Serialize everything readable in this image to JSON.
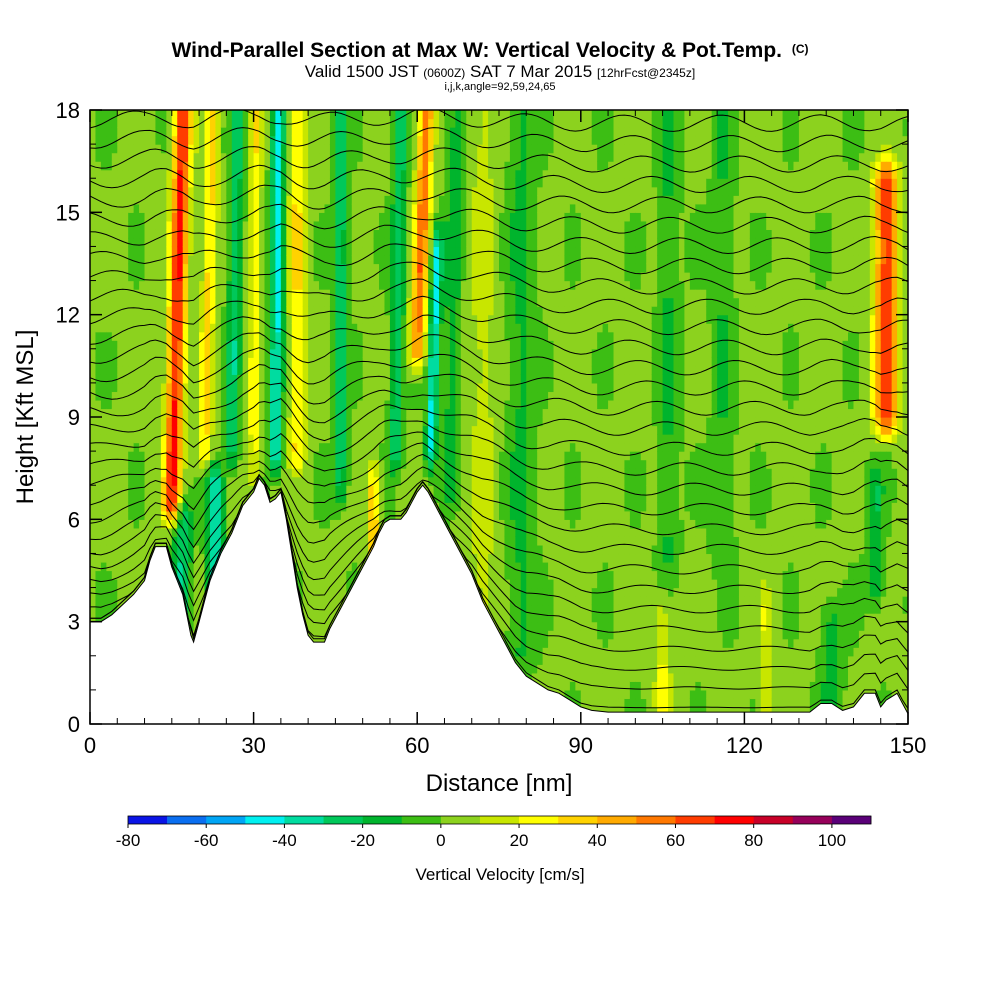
{
  "chart_data": {
    "type": "heatmap",
    "title": "Wind-Parallel Section at Max W: Vertical Velocity & Pot.Temp.",
    "title_mark": "(C)",
    "subtitle_parts": [
      "Valid 1500 JST ",
      "(0600Z)",
      " SAT 7 Mar 2015 ",
      "[12hrFcst@2345z]"
    ],
    "subtitle2": "i,j,k,angle=92,59,24,65",
    "xlabel": "Distance [nm]",
    "ylabel": "Height [Kft MSL]",
    "xlim": [
      0,
      150
    ],
    "ylim": [
      0,
      18
    ],
    "xticks": [
      0,
      30,
      60,
      90,
      120,
      150
    ],
    "yticks": [
      0,
      3,
      6,
      9,
      12,
      15,
      18
    ],
    "colorbar": {
      "label": "Vertical Velocity [cm/s]",
      "ticks": [
        -80,
        -60,
        -40,
        -20,
        0,
        20,
        40,
        60,
        80,
        100
      ],
      "bounds": [
        -80,
        -70,
        -60,
        -50,
        -40,
        -30,
        -20,
        -10,
        0,
        10,
        20,
        30,
        40,
        50,
        60,
        70,
        80,
        90,
        100
      ],
      "colors": [
        "#0a14e6",
        "#0a6ef0",
        "#00a5f5",
        "#00f0f0",
        "#00dca0",
        "#00c85a",
        "#00b42d",
        "#3cbe14",
        "#8cd21e",
        "#c8e600",
        "#ffff00",
        "#ffd200",
        "#ffaa00",
        "#ff7800",
        "#ff3c00",
        "#ff0000",
        "#c80028",
        "#96005a",
        "#5a0078"
      ]
    },
    "terrain_kft": [
      [
        0,
        3.0
      ],
      [
        2,
        3.0
      ],
      [
        4,
        3.2
      ],
      [
        6,
        3.5
      ],
      [
        8,
        3.8
      ],
      [
        10,
        4.2
      ],
      [
        11,
        4.8
      ],
      [
        12,
        5.2
      ],
      [
        14,
        5.2
      ],
      [
        15,
        4.6
      ],
      [
        16,
        4.2
      ],
      [
        17,
        3.8
      ],
      [
        18,
        3.0
      ],
      [
        18.5,
        2.6
      ],
      [
        19,
        2.4
      ],
      [
        20,
        3.0
      ],
      [
        21,
        3.6
      ],
      [
        22,
        4.2
      ],
      [
        24,
        5.0
      ],
      [
        26,
        5.6
      ],
      [
        28,
        6.4
      ],
      [
        30,
        6.8
      ],
      [
        31,
        7.2
      ],
      [
        32,
        7.0
      ],
      [
        33,
        6.5
      ],
      [
        34,
        6.6
      ],
      [
        35,
        6.8
      ],
      [
        36,
        6.0
      ],
      [
        37,
        5.0
      ],
      [
        38,
        4.0
      ],
      [
        39,
        3.2
      ],
      [
        40,
        2.6
      ],
      [
        41,
        2.4
      ],
      [
        43,
        2.4
      ],
      [
        44,
        2.8
      ],
      [
        46,
        3.4
      ],
      [
        48,
        4.0
      ],
      [
        50,
        4.6
      ],
      [
        52,
        5.2
      ],
      [
        53,
        5.6
      ],
      [
        54,
        5.9
      ],
      [
        55,
        6.0
      ],
      [
        56,
        6.0
      ],
      [
        57,
        6.0
      ],
      [
        58,
        6.2
      ],
      [
        59,
        6.5
      ],
      [
        60,
        6.8
      ],
      [
        61,
        7.0
      ],
      [
        62,
        6.8
      ],
      [
        63,
        6.5
      ],
      [
        64,
        6.2
      ],
      [
        66,
        5.6
      ],
      [
        68,
        5.0
      ],
      [
        70,
        4.4
      ],
      [
        72,
        3.6
      ],
      [
        74,
        3.0
      ],
      [
        76,
        2.4
      ],
      [
        78,
        1.8
      ],
      [
        80,
        1.4
      ],
      [
        82,
        1.2
      ],
      [
        84,
        1.0
      ],
      [
        86,
        0.9
      ],
      [
        88,
        0.7
      ],
      [
        90,
        0.5
      ],
      [
        92,
        0.4
      ],
      [
        95,
        0.35
      ],
      [
        100,
        0.35
      ],
      [
        110,
        0.35
      ],
      [
        120,
        0.35
      ],
      [
        132,
        0.35
      ],
      [
        134,
        0.6
      ],
      [
        136,
        0.6
      ],
      [
        138,
        0.4
      ],
      [
        140,
        0.5
      ],
      [
        142,
        0.9
      ],
      [
        144,
        0.9
      ],
      [
        145,
        0.5
      ],
      [
        146,
        0.7
      ],
      [
        148,
        0.9
      ],
      [
        150,
        0.3
      ]
    ],
    "isentrope_heights_kft": [
      0.2,
      0.8,
      1.4,
      2.0,
      2.6,
      3.2,
      3.8,
      4.4,
      5.0,
      5.6,
      6.2,
      6.8,
      7.4,
      8.0,
      8.6,
      9.2,
      9.8,
      10.4,
      11.0,
      11.6,
      12.2,
      12.8,
      13.4,
      14.0,
      14.6,
      15.2,
      15.8,
      16.4,
      17.0,
      17.6
    ],
    "features": [
      {
        "x": 15,
        "half_width_nm": 1.6,
        "y_bottom": 6.5,
        "y_top": 18,
        "w": 70,
        "tilt": 0.18
      },
      {
        "x": 21,
        "half_width_nm": 1.2,
        "y_bottom": 8,
        "y_top": 18,
        "w": 32,
        "tilt": 0.15
      },
      {
        "x": 23,
        "half_width_nm": 1.5,
        "y_bottom": 3,
        "y_top": 7,
        "w": -45,
        "tilt": 0
      },
      {
        "x": 17,
        "half_width_nm": 1.5,
        "y_bottom": 3.5,
        "y_top": 6,
        "w": -35,
        "tilt": 0
      },
      {
        "x": 26,
        "half_width_nm": 1.2,
        "y_bottom": 8,
        "y_top": 18,
        "w": -30,
        "tilt": 0.1
      },
      {
        "x": 34,
        "half_width_nm": 1.2,
        "y_bottom": 8,
        "y_top": 18,
        "w": -45,
        "tilt": 0.05
      },
      {
        "x": 30,
        "half_width_nm": 1.0,
        "y_bottom": 7.5,
        "y_top": 18,
        "w": 25,
        "tilt": 0.05
      },
      {
        "x": 38,
        "half_width_nm": 1.4,
        "y_bottom": 8,
        "y_top": 18,
        "w": 30,
        "tilt": 0
      },
      {
        "x": 46,
        "half_width_nm": 1.2,
        "y_bottom": 7,
        "y_top": 18,
        "w": -28,
        "tilt": 0
      },
      {
        "x": 52,
        "half_width_nm": 1.0,
        "y_bottom": 5,
        "y_top": 7,
        "w": 38,
        "tilt": 0
      },
      {
        "x": 56,
        "half_width_nm": 1.2,
        "y_bottom": 8,
        "y_top": 18,
        "w": -30,
        "tilt": 0.1
      },
      {
        "x": 60,
        "half_width_nm": 1.4,
        "y_bottom": 11,
        "y_top": 18,
        "w": 55,
        "tilt": 0.25
      },
      {
        "x": 62.5,
        "half_width_nm": 1.0,
        "y_bottom": 8,
        "y_top": 14,
        "w": -45,
        "tilt": 0.2
      },
      {
        "x": 66,
        "half_width_nm": 1.5,
        "y_bottom": 7,
        "y_top": 18,
        "w": -18,
        "tilt": 0.1
      },
      {
        "x": 72,
        "half_width_nm": 2.5,
        "y_bottom": 3,
        "y_top": 18,
        "w": 12,
        "tilt": 0
      },
      {
        "x": 79,
        "half_width_nm": 2.5,
        "y_bottom": 2,
        "y_top": 18,
        "w": -14,
        "tilt": 0
      },
      {
        "x": 106,
        "half_width_nm": 1.8,
        "y_bottom": 5,
        "y_top": 18,
        "w": -14,
        "tilt": 0
      },
      {
        "x": 116,
        "half_width_nm": 2.0,
        "y_bottom": 5,
        "y_top": 18,
        "w": -12,
        "tilt": 0
      },
      {
        "x": 105,
        "half_width_nm": 1.5,
        "y_bottom": 0.5,
        "y_top": 3,
        "w": 20,
        "tilt": 0
      },
      {
        "x": 124,
        "half_width_nm": 1.2,
        "y_bottom": 0.5,
        "y_top": 3.5,
        "w": 18,
        "tilt": 0
      },
      {
        "x": 136,
        "half_width_nm": 2.0,
        "y_bottom": 0.5,
        "y_top": 3,
        "w": -18,
        "tilt": 0
      },
      {
        "x": 146,
        "half_width_nm": 2.2,
        "y_bottom": 9,
        "y_top": 16,
        "w": 65,
        "tilt": 0
      },
      {
        "x": 144,
        "half_width_nm": 1.5,
        "y_bottom": 4,
        "y_top": 7,
        "w": -22,
        "tilt": 0
      }
    ]
  }
}
